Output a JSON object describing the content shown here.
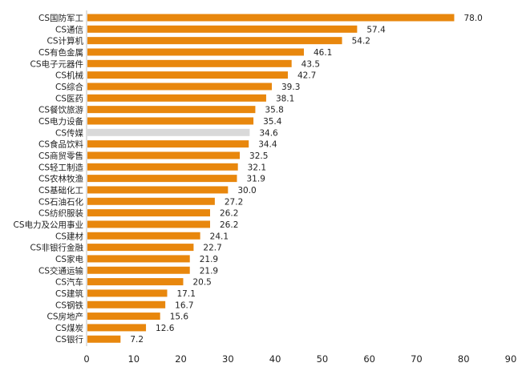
{
  "chart_data": {
    "type": "bar",
    "orientation": "horizontal",
    "title": "",
    "xlabel": "",
    "ylabel": "",
    "xlim": [
      0,
      90
    ],
    "xticks": [
      0,
      10,
      20,
      30,
      40,
      50,
      60,
      70,
      80,
      90
    ],
    "grid": false,
    "categories": [
      "CS国防军工",
      "CS通信",
      "CS计算机",
      "CS有色金属",
      "CS电子元器件",
      "CS机械",
      "CS综合",
      "CS医药",
      "CS餐饮旅游",
      "CS电力设备",
      "CS传媒",
      "CS食品饮料",
      "CS商贸零售",
      "CS轻工制造",
      "CS农林牧渔",
      "CS基础化工",
      "CS石油石化",
      "CS纺织服装",
      "CS电力及公用事业",
      "CS建材",
      "CS非银行金融",
      "CS家电",
      "CS交通运输",
      "CS汽车",
      "CS建筑",
      "CS钢铁",
      "CS房地产",
      "CS煤炭",
      "CS银行"
    ],
    "values": [
      78.0,
      57.4,
      54.2,
      46.1,
      43.5,
      42.7,
      39.3,
      38.1,
      35.8,
      35.4,
      34.6,
      34.4,
      32.5,
      32.1,
      31.9,
      30.0,
      27.2,
      26.2,
      26.2,
      24.1,
      22.7,
      21.9,
      21.9,
      20.5,
      17.1,
      16.7,
      15.6,
      12.6,
      7.2
    ],
    "value_labels": [
      "78.0",
      "57.4",
      "54.2",
      "46.1",
      "43.5",
      "42.7",
      "39.3",
      "38.1",
      "35.8",
      "35.4",
      "34.6",
      "34.4",
      "32.5",
      "32.1",
      "31.9",
      "30.0",
      "27.2",
      "26.2",
      "26.2",
      "24.1",
      "22.7",
      "21.9",
      "21.9",
      "20.5",
      "17.1",
      "16.7",
      "15.6",
      "12.6",
      "7.2"
    ],
    "highlight_category": "CS传媒",
    "colors": {
      "bar": "#E8870D",
      "highlight": "#D9D9D9",
      "axis": "#BFBFBF",
      "text": "#222222"
    }
  }
}
